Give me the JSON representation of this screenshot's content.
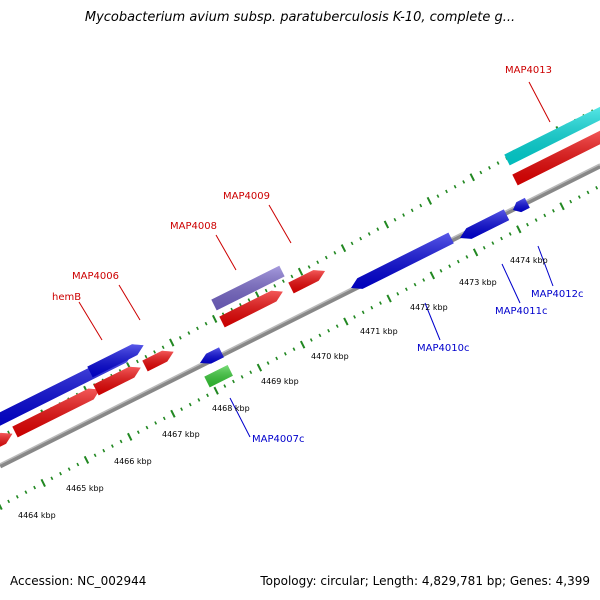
{
  "title": "Mycobacterium avium subsp. paratuberculosis K-10, complete g...",
  "footer": {
    "accession": "Accession: NC_002944",
    "summary": "Topology: circular; Length: 4,829,781 bp; Genes: 4,399"
  },
  "scale_labels": [
    "4464 kbp",
    "4465 kbp",
    "4466 kbp",
    "4467 kbp",
    "4468 kbp",
    "4469 kbp",
    "4470 kbp",
    "4471 kbp",
    "4472 kbp",
    "4473 kbp",
    "4474 kbp"
  ],
  "gene_labels": {
    "hemB": "hemB",
    "MAP4006": "MAP4006",
    "MAP4008": "MAP4008",
    "MAP4009": "MAP4009",
    "MAP4013": "MAP4013",
    "MAP4007c": "MAP4007c",
    "MAP4010c": "MAP4010c",
    "MAP4011c": "MAP4011c",
    "MAP4012c": "MAP4012c"
  },
  "colors": {
    "cds_blue": "#0000dd",
    "cds_red": "#ee0000",
    "cyan_feature": "#00dddd",
    "purple_feature": "#7766cc",
    "green_feature": "#33cc33",
    "backbone": "#888888",
    "ticks": "#228822"
  }
}
